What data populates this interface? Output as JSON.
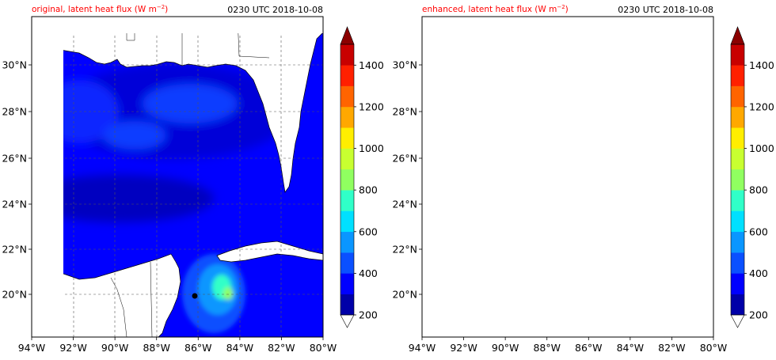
{
  "panels": [
    {
      "title_left": "original, latent heat flux (W m",
      "title_exp": "−2",
      "title_close": ")",
      "title_right": "0230 UTC 2018-10-08"
    },
    {
      "title_left": "enhanced, latent heat flux (W m",
      "title_exp": "−2",
      "title_close": ")",
      "title_right": "0230 UTC 2018-10-08"
    }
  ],
  "axes": {
    "x_ticks": [
      "94°W",
      "92°W",
      "90°W",
      "88°W",
      "86°W",
      "84°W",
      "82°W",
      "80°W"
    ],
    "y_ticks": [
      "30°N",
      "28°N",
      "26°N",
      "24°N",
      "22°N",
      "20°N"
    ]
  },
  "colorbar": {
    "tick_labels": [
      "200",
      "400",
      "600",
      "800",
      "1000",
      "1200",
      "1400"
    ],
    "colors": [
      "#0000a8",
      "#0000ff",
      "#0a50ff",
      "#0a96ff",
      "#00e0ff",
      "#30ffc8",
      "#90ff60",
      "#c8ff30",
      "#ffee00",
      "#ffa800",
      "#ff6400",
      "#ff2000",
      "#c80000"
    ],
    "over_color": "#8b0000",
    "under_color": "#ffffff"
  },
  "colors": {
    "title_red": "#ff0000",
    "land": "#ffffff",
    "ocean_base": "#0000ff"
  }
}
